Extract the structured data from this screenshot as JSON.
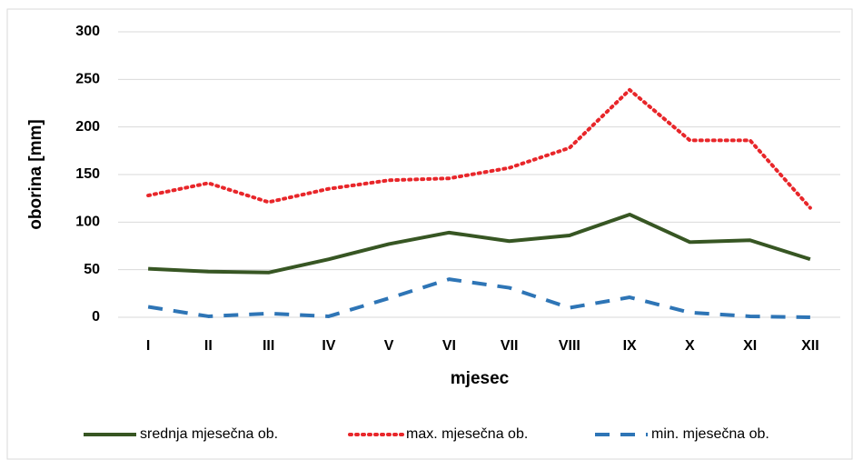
{
  "chart_data": {
    "type": "line",
    "x_label": "mjesec",
    "y_label": "oborina [mm]",
    "categories": [
      "I",
      "II",
      "III",
      "IV",
      "V",
      "VI",
      "VII",
      "VIII",
      "IX",
      "X",
      "XI",
      "XII"
    ],
    "series": [
      {
        "name": "srednja mjesečna ob.",
        "color": "#375623",
        "style": "solid",
        "values": [
          51,
          48,
          47,
          61,
          77,
          89,
          80,
          86,
          108,
          79,
          81,
          61
        ]
      },
      {
        "name": "max. mjesečna ob.",
        "color": "#e8262a",
        "style": "dotted",
        "values": [
          128,
          141,
          121,
          135,
          144,
          146,
          157,
          178,
          239,
          186,
          186,
          115
        ]
      },
      {
        "name": "min. mjesečna ob.",
        "color": "#2e75b6",
        "style": "dashed",
        "values": [
          11,
          1,
          4,
          1,
          20,
          40,
          31,
          10,
          21,
          5,
          1,
          0
        ]
      }
    ],
    "ylim": [
      0,
      300
    ],
    "yticks": [
      0,
      50,
      100,
      150,
      200,
      250,
      300
    ],
    "grid": true,
    "legend": "bottom"
  }
}
